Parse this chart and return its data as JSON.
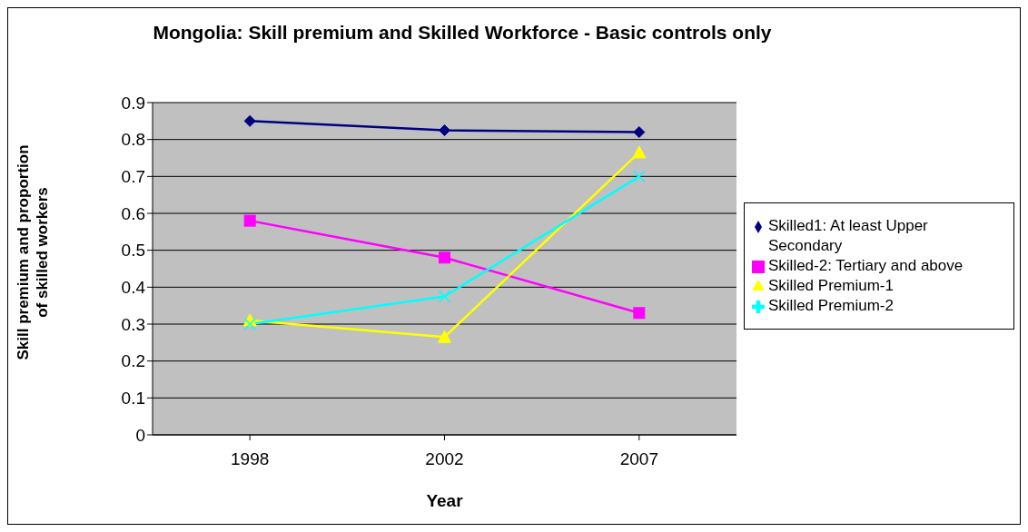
{
  "chart_data": {
    "type": "line",
    "title": "Mongolia: Skill premium and Skilled Workforce - Basic controls only",
    "xlabel": "Year",
    "ylabel": "Skill premium and proportion of skilled workers",
    "categories": [
      "1998",
      "2002",
      "2007"
    ],
    "series": [
      {
        "name": "Skilled1: At least Upper Secondary",
        "color": "#000080",
        "marker": "diamond",
        "values": [
          0.85,
          0.825,
          0.82
        ]
      },
      {
        "name": "Skilled-2: Tertiary and above",
        "color": "#ff00ff",
        "marker": "square",
        "values": [
          0.58,
          0.48,
          0.33
        ]
      },
      {
        "name": "Skilled Premium-1",
        "color": "#ffff00",
        "marker": "triangle",
        "values": [
          0.31,
          0.265,
          0.765
        ]
      },
      {
        "name": "Skilled Premium-2",
        "color": "#00ffff",
        "marker": "cross",
        "values": [
          0.3,
          0.375,
          0.7
        ]
      }
    ],
    "ylim": [
      0,
      0.9
    ],
    "yticks": [
      0,
      0.1,
      0.2,
      0.3,
      0.4,
      0.5,
      0.6,
      0.7,
      0.8,
      0.9
    ],
    "grid": "y",
    "legend": "right",
    "line_style": "solid"
  }
}
